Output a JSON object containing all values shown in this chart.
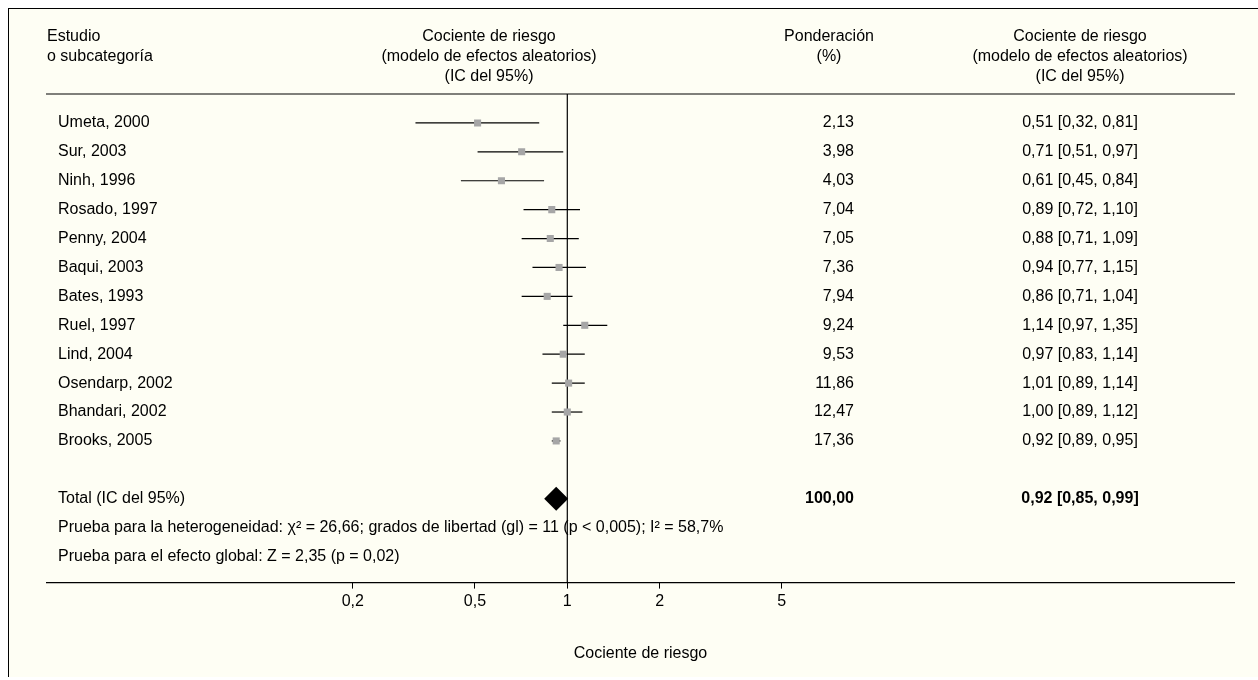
{
  "chart_data": {
    "type": "scatter",
    "orientation": "horizontal",
    "title": "Cociente de riesgo\n(modelo de efectos aleatorios)\n(IC del 95%)",
    "ylabel": "Estudio\no subcategoría",
    "xlabel": "Cociente de riesgo",
    "categories": [
      "Umeta, 2000",
      "Sur, 2003",
      "Ninh, 1996",
      "Rosado, 1997",
      "Penny, 2004",
      "Baqui, 2003",
      "Bates, 1993",
      "Ruel, 1997",
      "Lind, 2004",
      "Osendarp, 2002",
      "Bhandari, 2002",
      "Brooks, 2005",
      null,
      "Total (IC del 95%)"
    ],
    "series": [
      {
        "color": "#a6a6a6",
        "marker": "square",
        "values": [
          0.51,
          0.71,
          0.61,
          0.89,
          0.88,
          0.94,
          0.86,
          1.14,
          0.97,
          1.01,
          1.0,
          0.92,
          null,
          null
        ],
        "errors": [
          [
            0.32,
            0.81
          ],
          [
            0.51,
            0.97
          ],
          [
            0.45,
            0.84
          ],
          [
            0.72,
            1.1
          ],
          [
            0.71,
            1.09
          ],
          [
            0.77,
            1.15
          ],
          [
            0.71,
            1.04
          ],
          [
            0.97,
            1.35
          ],
          [
            0.83,
            1.14
          ],
          [
            0.89,
            1.14
          ],
          [
            0.89,
            1.12
          ],
          [
            0.89,
            0.95
          ],
          null,
          null
        ]
      },
      {
        "color": "#000000",
        "marker": "diamond",
        "values": [
          null,
          null,
          null,
          null,
          null,
          null,
          null,
          null,
          null,
          null,
          null,
          null,
          null,
          0.92
        ],
        "errors": [
          null,
          null,
          null,
          null,
          null,
          null,
          null,
          null,
          null,
          null,
          null,
          null,
          null,
          [
            0.85,
            0.99
          ]
        ]
      }
    ],
    "log": "x",
    "xlim": [
      0.02,
      150
    ],
    "xticks": [
      {
        "value": 0.2,
        "label": "0,2"
      },
      {
        "value": 0.5,
        "label": "0,5"
      },
      1,
      2,
      5
    ],
    "ref_lines": [
      {
        "axis": "x",
        "value": 1,
        "color": "#000000"
      }
    ],
    "grid": false,
    "legend": false,
    "annotations": [
      "Ponderación\n(%)",
      "Cociente de riesgo\n(modelo de efectos aleatorios)\n(IC del 95%)",
      "Prueba para la heterogeneidad: χ² = 26,66; grados de libertad (gl) = 11 (p < 0,005); I² = 58,7%",
      "Prueba para el efecto global: Z = 2,35 (p = 0,02)",
      "2,13",
      "3,98",
      "4,03",
      "7,04",
      "7,05",
      "7,36",
      "7,94",
      "9,24",
      "9,53",
      "11,86",
      "12,47",
      "17,36",
      "100,00",
      "0,51 [0,32, 0,81]",
      "0,71 [0,51, 0,97]",
      "0,61 [0,45, 0,84]",
      "0,89 [0,72, 1,10]",
      "0,88 [0,71, 1,09]",
      "0,94 [0,77, 1,15]",
      "0,86 [0,71, 1,04]",
      "1,14 [0,97, 1,35]",
      "0,97 [0,83, 1,14]",
      "1,01 [0,89, 1,14]",
      "1,00 [0,89, 1,12]",
      "0,92 [0,89, 0,95]",
      "0,92 [0,85, 0,99]"
    ]
  }
}
